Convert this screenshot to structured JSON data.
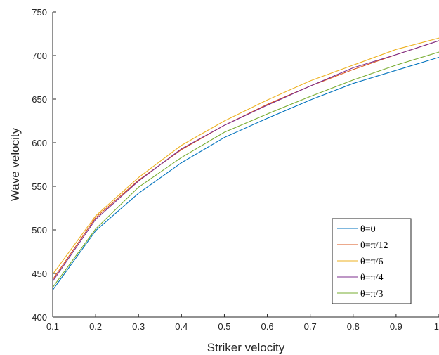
{
  "chart_data": {
    "type": "line",
    "title": "",
    "xlabel": "Striker velocity",
    "ylabel": "Wave velocity",
    "xlim": [
      0.1,
      1
    ],
    "ylim": [
      400,
      750
    ],
    "xticks": [
      0.1,
      0.2,
      0.3,
      0.4,
      0.5,
      0.6,
      0.7,
      0.8,
      0.9,
      1
    ],
    "xtick_labels": [
      "0.1",
      "0.2",
      "0.3",
      "0.4",
      "0.5",
      "0.6",
      "0.7",
      "0.8",
      "0.9",
      "1"
    ],
    "yticks": [
      400,
      450,
      500,
      550,
      600,
      650,
      700,
      750
    ],
    "ytick_labels": [
      "400",
      "450",
      "500",
      "550",
      "600",
      "650",
      "700",
      "750"
    ],
    "grid": false,
    "legend_position": "bottom-right",
    "x": [
      0.1,
      0.2,
      0.3,
      0.4,
      0.5,
      0.6,
      0.7,
      0.8,
      0.9,
      1.0
    ],
    "series": [
      {
        "name": "θ=0",
        "color": "#0072BD",
        "values": [
          431,
          499,
          542,
          577,
          606,
          628,
          649,
          668,
          683,
          698
        ]
      },
      {
        "name": "θ=π/12",
        "color": "#D95319",
        "values": [
          443,
          514,
          557,
          592,
          620,
          644,
          665,
          684,
          701,
          717
        ]
      },
      {
        "name": "θ=π/6",
        "color": "#EDB120",
        "values": [
          449,
          516,
          560,
          597,
          625,
          649,
          671,
          689,
          707,
          720
        ]
      },
      {
        "name": "θ=π/4",
        "color": "#7E2F8E",
        "values": [
          441,
          512,
          556,
          593,
          620,
          643,
          665,
          686,
          701,
          717
        ]
      },
      {
        "name": "θ=π/3",
        "color": "#77AC30",
        "values": [
          434,
          501,
          549,
          583,
          612,
          633,
          653,
          672,
          689,
          704
        ]
      }
    ]
  }
}
